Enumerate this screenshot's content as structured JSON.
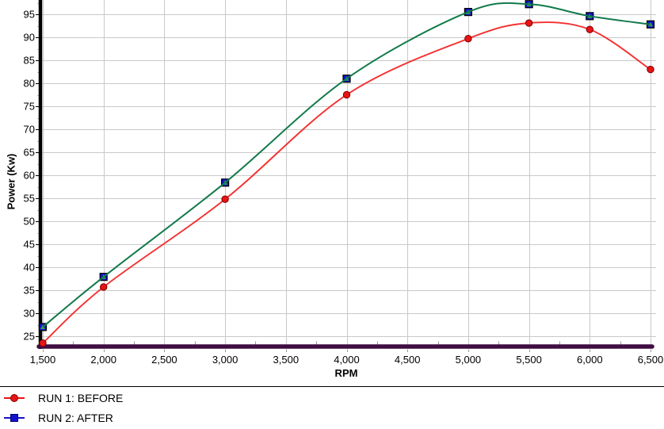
{
  "chart_data": {
    "type": "line",
    "title": "",
    "xlabel": "RPM",
    "ylabel": "Power (Kw)",
    "x": [
      1500,
      2000,
      3000,
      4000,
      5000,
      5500,
      6000,
      6500
    ],
    "series": [
      {
        "name": "RUN 1: BEFORE",
        "marker": "circle",
        "line_color": "#f43030",
        "marker_fill": "#e81414",
        "marker_stroke": "#7e0000",
        "values": [
          23.5,
          35.7,
          54.8,
          77.5,
          89.7,
          93.1,
          91.7,
          83.0
        ]
      },
      {
        "name": "RUN 2: AFTER",
        "marker": "square",
        "line_color": "#127a4b",
        "marker_fill": "#1212cc",
        "marker_stroke": "#000000",
        "marker_inner": "#2fa24b",
        "values": [
          27.0,
          37.9,
          58.4,
          81.0,
          95.5,
          97.2,
          94.6,
          92.8
        ]
      }
    ],
    "x_ticks": [
      {
        "v": 1500,
        "label": "1,500"
      },
      {
        "v": 2000,
        "label": "2,000"
      },
      {
        "v": 2500,
        "label": "2,500"
      },
      {
        "v": 3000,
        "label": "3,000"
      },
      {
        "v": 3500,
        "label": "3,500"
      },
      {
        "v": 4000,
        "label": "4,000"
      },
      {
        "v": 4500,
        "label": "4,500"
      },
      {
        "v": 5000,
        "label": "5,000"
      },
      {
        "v": 5500,
        "label": "5,500"
      },
      {
        "v": 6000,
        "label": "6,000"
      },
      {
        "v": 6500,
        "label": "6,500"
      }
    ],
    "x_minor_step": 250,
    "y_ticks": [
      25,
      30,
      35,
      40,
      45,
      50,
      55,
      60,
      65,
      70,
      75,
      80,
      85,
      90,
      95
    ],
    "y_minor_step": 2.5,
    "xlim": [
      1500,
      6500
    ],
    "ylim_visible": [
      22.75,
      98.2
    ],
    "grid": true,
    "legend_position": "bottom-left",
    "colors": {
      "background": "#ffffff",
      "grid": "#c9c9c9",
      "y_axis": "#000000",
      "x_axis": "#400d42",
      "tick_text": "#000000",
      "minor_tick": "#9a9a9a"
    }
  }
}
